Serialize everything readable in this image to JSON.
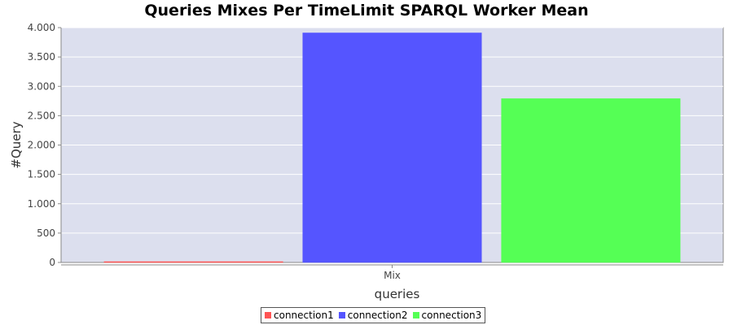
{
  "chart_data": {
    "type": "bar",
    "title": "Queries Mixes Per TimeLimit SPARQL Worker Mean",
    "xlabel": "queries",
    "ylabel": "#Query",
    "categories": [
      "Mix"
    ],
    "ylim": [
      0,
      4000
    ],
    "yticks": [
      0,
      500,
      1000,
      1500,
      2000,
      2500,
      3000,
      3500,
      4000
    ],
    "ytick_labels": [
      "0",
      "500",
      "1.000",
      "1.500",
      "2.000",
      "2.500",
      "3.000",
      "3.500",
      "4.000"
    ],
    "grid": true,
    "legend_position": "bottom",
    "series": [
      {
        "name": "connection1",
        "color": "#ff5555",
        "values": [
          5
        ]
      },
      {
        "name": "connection2",
        "color": "#5555ff",
        "values": [
          3910
        ]
      },
      {
        "name": "connection3",
        "color": "#55ff55",
        "values": [
          2790
        ]
      }
    ]
  },
  "colors": {
    "plot_background": "#dcdfee",
    "gridline": "#ffffff"
  }
}
